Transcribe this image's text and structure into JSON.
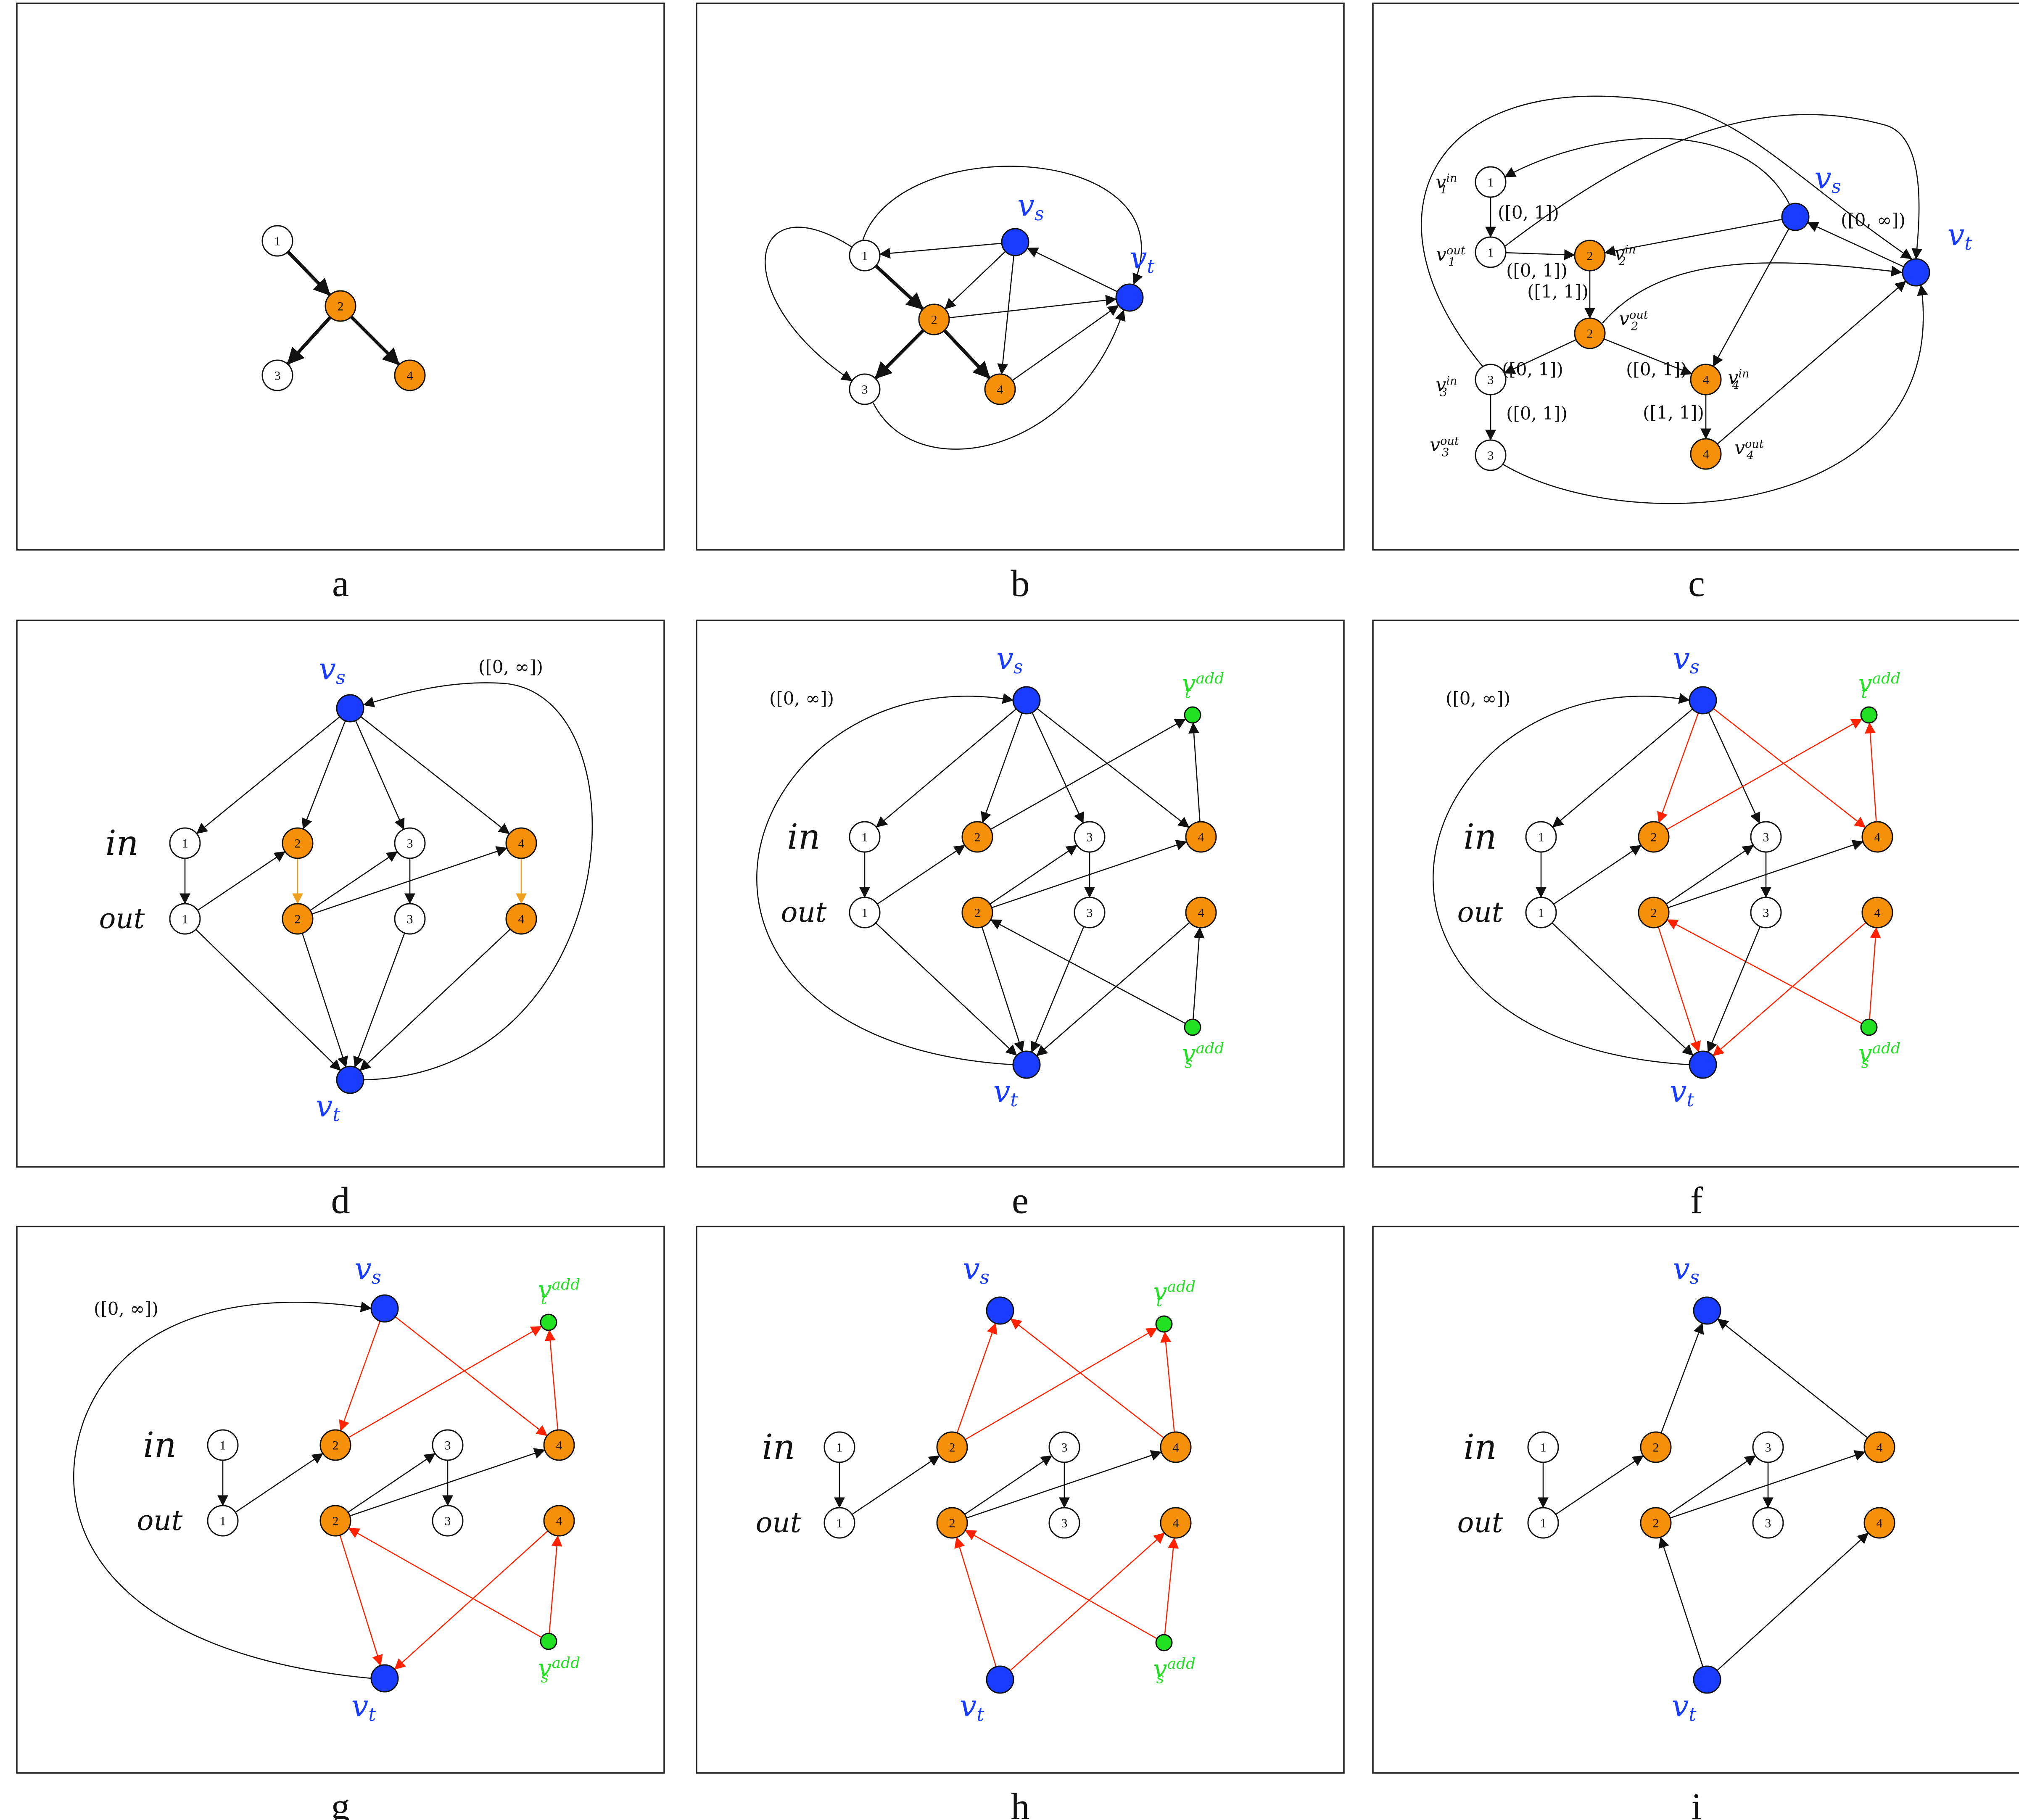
{
  "colors": {
    "source_sink": "#1a3cff",
    "selected": "#f68f0a",
    "plain": "#ffffff",
    "added": "#22e022",
    "edge": "#111111",
    "residual": "#ff2200",
    "in_out": "#f0a020"
  },
  "labels": {
    "vs": "v",
    "vs_sub": "s",
    "vt": "v",
    "vt_sub": "t",
    "add_sup": "add",
    "in": "in",
    "out": "out",
    "cap_0_inf": "([0, ∞])",
    "cap_0_1": "([0, 1])",
    "cap_1_1": "([1, 1])"
  },
  "panels": [
    {
      "id": "a",
      "label": "a",
      "description_nodes": [
        "1",
        "2",
        "3",
        "4"
      ]
    },
    {
      "id": "b",
      "label": "b"
    },
    {
      "id": "c",
      "label": "c"
    },
    {
      "id": "d",
      "label": "d"
    },
    {
      "id": "e",
      "label": "e"
    },
    {
      "id": "f",
      "label": "f"
    },
    {
      "id": "g",
      "label": "g"
    },
    {
      "id": "h",
      "label": "h"
    },
    {
      "id": "i",
      "label": "i"
    }
  ],
  "node_numbers": [
    "1",
    "2",
    "3",
    "4"
  ]
}
